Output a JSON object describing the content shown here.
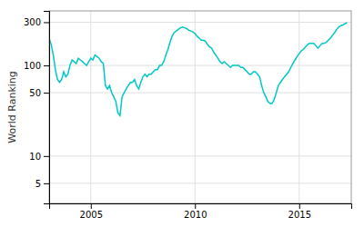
{
  "chart_data": {
    "type": "line",
    "y_label": "World Ranking",
    "color": "#00c8c8",
    "log": "y",
    "grid": true,
    "xlim": [
      2003.0,
      2017.5
    ],
    "ylim": [
      3,
      400
    ],
    "xticks": [
      2005,
      2010,
      2015
    ],
    "yticks": [
      5,
      10,
      50,
      100,
      300
    ],
    "x": [
      2003.0,
      2003.1,
      2003.2,
      2003.3,
      2003.4,
      2003.5,
      2003.6,
      2003.7,
      2003.8,
      2003.9,
      2004.0,
      2004.1,
      2004.2,
      2004.3,
      2004.4,
      2004.5,
      2004.6,
      2004.7,
      2004.8,
      2004.9,
      2005.0,
      2005.1,
      2005.2,
      2005.3,
      2005.4,
      2005.5,
      2005.6,
      2005.7,
      2005.8,
      2005.9,
      2006.0,
      2006.1,
      2006.2,
      2006.3,
      2006.4,
      2006.5,
      2006.6,
      2006.7,
      2006.8,
      2006.9,
      2007.0,
      2007.1,
      2007.2,
      2007.3,
      2007.4,
      2007.5,
      2007.6,
      2007.7,
      2007.8,
      2007.9,
      2008.0,
      2008.1,
      2008.2,
      2008.3,
      2008.4,
      2008.5,
      2008.6,
      2008.7,
      2008.8,
      2008.9,
      2009.0,
      2009.1,
      2009.2,
      2009.3,
      2009.4,
      2009.5,
      2009.6,
      2009.7,
      2009.8,
      2009.9,
      2010.0,
      2010.1,
      2010.2,
      2010.3,
      2010.4,
      2010.5,
      2010.6,
      2010.7,
      2010.8,
      2010.9,
      2011.0,
      2011.1,
      2011.2,
      2011.3,
      2011.4,
      2011.5,
      2011.6,
      2011.7,
      2011.8,
      2011.9,
      2012.0,
      2012.1,
      2012.2,
      2012.3,
      2012.4,
      2012.5,
      2012.6,
      2012.7,
      2012.8,
      2012.9,
      2013.0,
      2013.1,
      2013.2,
      2013.3,
      2013.4,
      2013.5,
      2013.6,
      2013.7,
      2013.8,
      2013.9,
      2014.0,
      2014.1,
      2014.2,
      2014.3,
      2014.4,
      2014.5,
      2014.6,
      2014.7,
      2014.8,
      2014.9,
      2015.0,
      2015.1,
      2015.2,
      2015.3,
      2015.4,
      2015.5,
      2015.6,
      2015.7,
      2015.8,
      2015.9,
      2016.0,
      2016.1,
      2016.2,
      2016.3,
      2016.4,
      2016.5,
      2016.6,
      2016.7,
      2016.8,
      2016.9,
      2017.0,
      2017.1,
      2017.2,
      2017.3
    ],
    "values": [
      200,
      170,
      130,
      90,
      70,
      65,
      70,
      85,
      75,
      80,
      100,
      115,
      110,
      105,
      120,
      115,
      110,
      105,
      100,
      110,
      120,
      115,
      130,
      125,
      120,
      110,
      105,
      60,
      55,
      60,
      50,
      45,
      40,
      30,
      28,
      45,
      50,
      55,
      60,
      65,
      65,
      70,
      60,
      55,
      65,
      75,
      80,
      75,
      80,
      80,
      85,
      90,
      90,
      100,
      100,
      110,
      130,
      150,
      180,
      210,
      230,
      240,
      250,
      260,
      265,
      260,
      255,
      245,
      240,
      235,
      225,
      210,
      200,
      190,
      190,
      185,
      170,
      160,
      155,
      140,
      130,
      120,
      110,
      105,
      110,
      105,
      100,
      95,
      100,
      100,
      100,
      100,
      95,
      95,
      90,
      85,
      80,
      80,
      85,
      85,
      80,
      75,
      60,
      50,
      45,
      40,
      38,
      38,
      42,
      50,
      60,
      65,
      70,
      75,
      80,
      85,
      95,
      105,
      115,
      125,
      135,
      145,
      150,
      160,
      170,
      175,
      175,
      175,
      165,
      155,
      165,
      175,
      175,
      180,
      190,
      200,
      215,
      230,
      250,
      265,
      275,
      280,
      290,
      295
    ]
  }
}
